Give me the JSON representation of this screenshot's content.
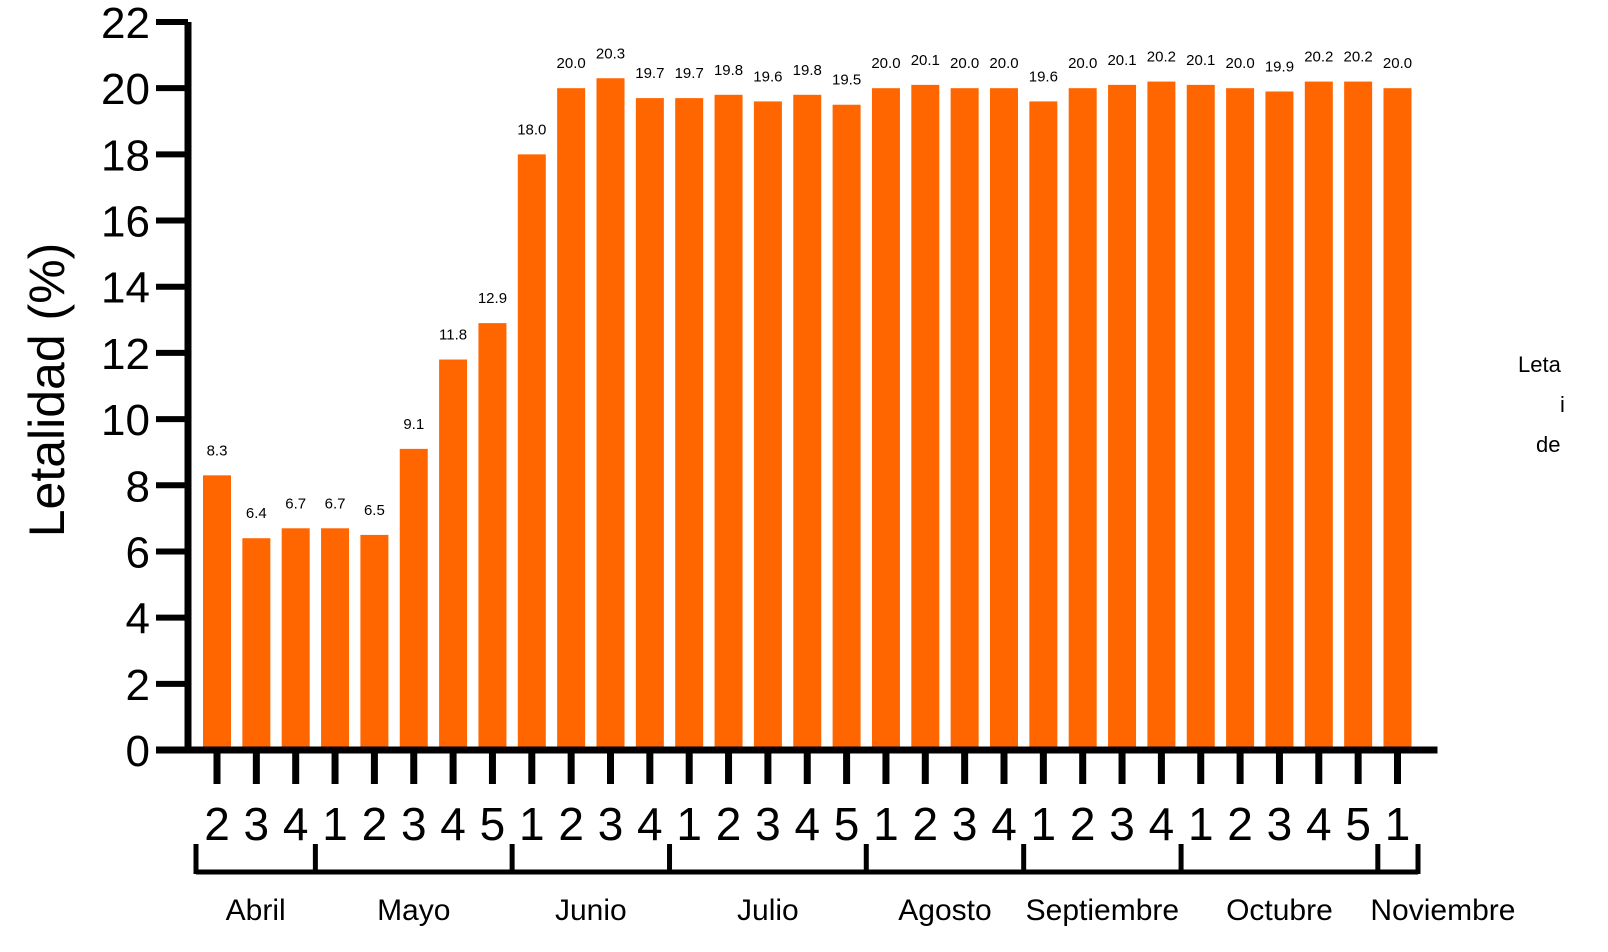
{
  "chart_data": {
    "type": "bar",
    "ylabel": "Letalidad (%)",
    "ylim": [
      0,
      22
    ],
    "yticks": [
      0,
      2,
      4,
      6,
      8,
      10,
      12,
      14,
      16,
      18,
      20,
      22
    ],
    "bar_color": "#FF6600",
    "categories": [
      "2",
      "3",
      "4",
      "1",
      "2",
      "3",
      "4",
      "5",
      "1",
      "2",
      "3",
      "4",
      "1",
      "2",
      "3",
      "4",
      "5",
      "1",
      "2",
      "3",
      "4",
      "1",
      "2",
      "3",
      "4",
      "1",
      "2",
      "3",
      "4",
      "5",
      "1"
    ],
    "values": [
      8.3,
      6.4,
      6.7,
      6.7,
      6.5,
      9.1,
      11.8,
      12.9,
      18.0,
      20.0,
      20.3,
      19.7,
      19.7,
      19.8,
      19.6,
      19.8,
      19.5,
      20.0,
      20.1,
      20.0,
      20.0,
      19.6,
      20.0,
      20.1,
      20.2,
      20.1,
      20.0,
      19.9,
      20.2,
      20.2,
      20.0
    ],
    "data_labels": [
      "8.3",
      "6.4",
      "6.7",
      "6.7",
      "6.5",
      "9.1",
      "11.8",
      "12.9",
      "18.0",
      "20.0",
      "20.3",
      "19.7",
      "19.7",
      "19.8",
      "19.6",
      "19.8",
      "19.5",
      "20.0",
      "20.1",
      "20.0",
      "20.0",
      "19.6",
      "20.0",
      "20.1",
      "20.2",
      "20.1",
      "20.0",
      "19.9",
      "20.2",
      "20.2",
      "20.0"
    ],
    "months": [
      {
        "name": "Abril",
        "weeks": 3
      },
      {
        "name": "Mayo",
        "weeks": 5
      },
      {
        "name": "Junio",
        "weeks": 4
      },
      {
        "name": "Julio",
        "weeks": 5
      },
      {
        "name": "Agosto",
        "weeks": 4
      },
      {
        "name": "Septiembre",
        "weeks": 4
      },
      {
        "name": "Octubre",
        "weeks": 5
      },
      {
        "name": "Noviembre",
        "weeks": 1
      }
    ],
    "side_note": [
      "Leta",
      "i",
      "de"
    ]
  }
}
